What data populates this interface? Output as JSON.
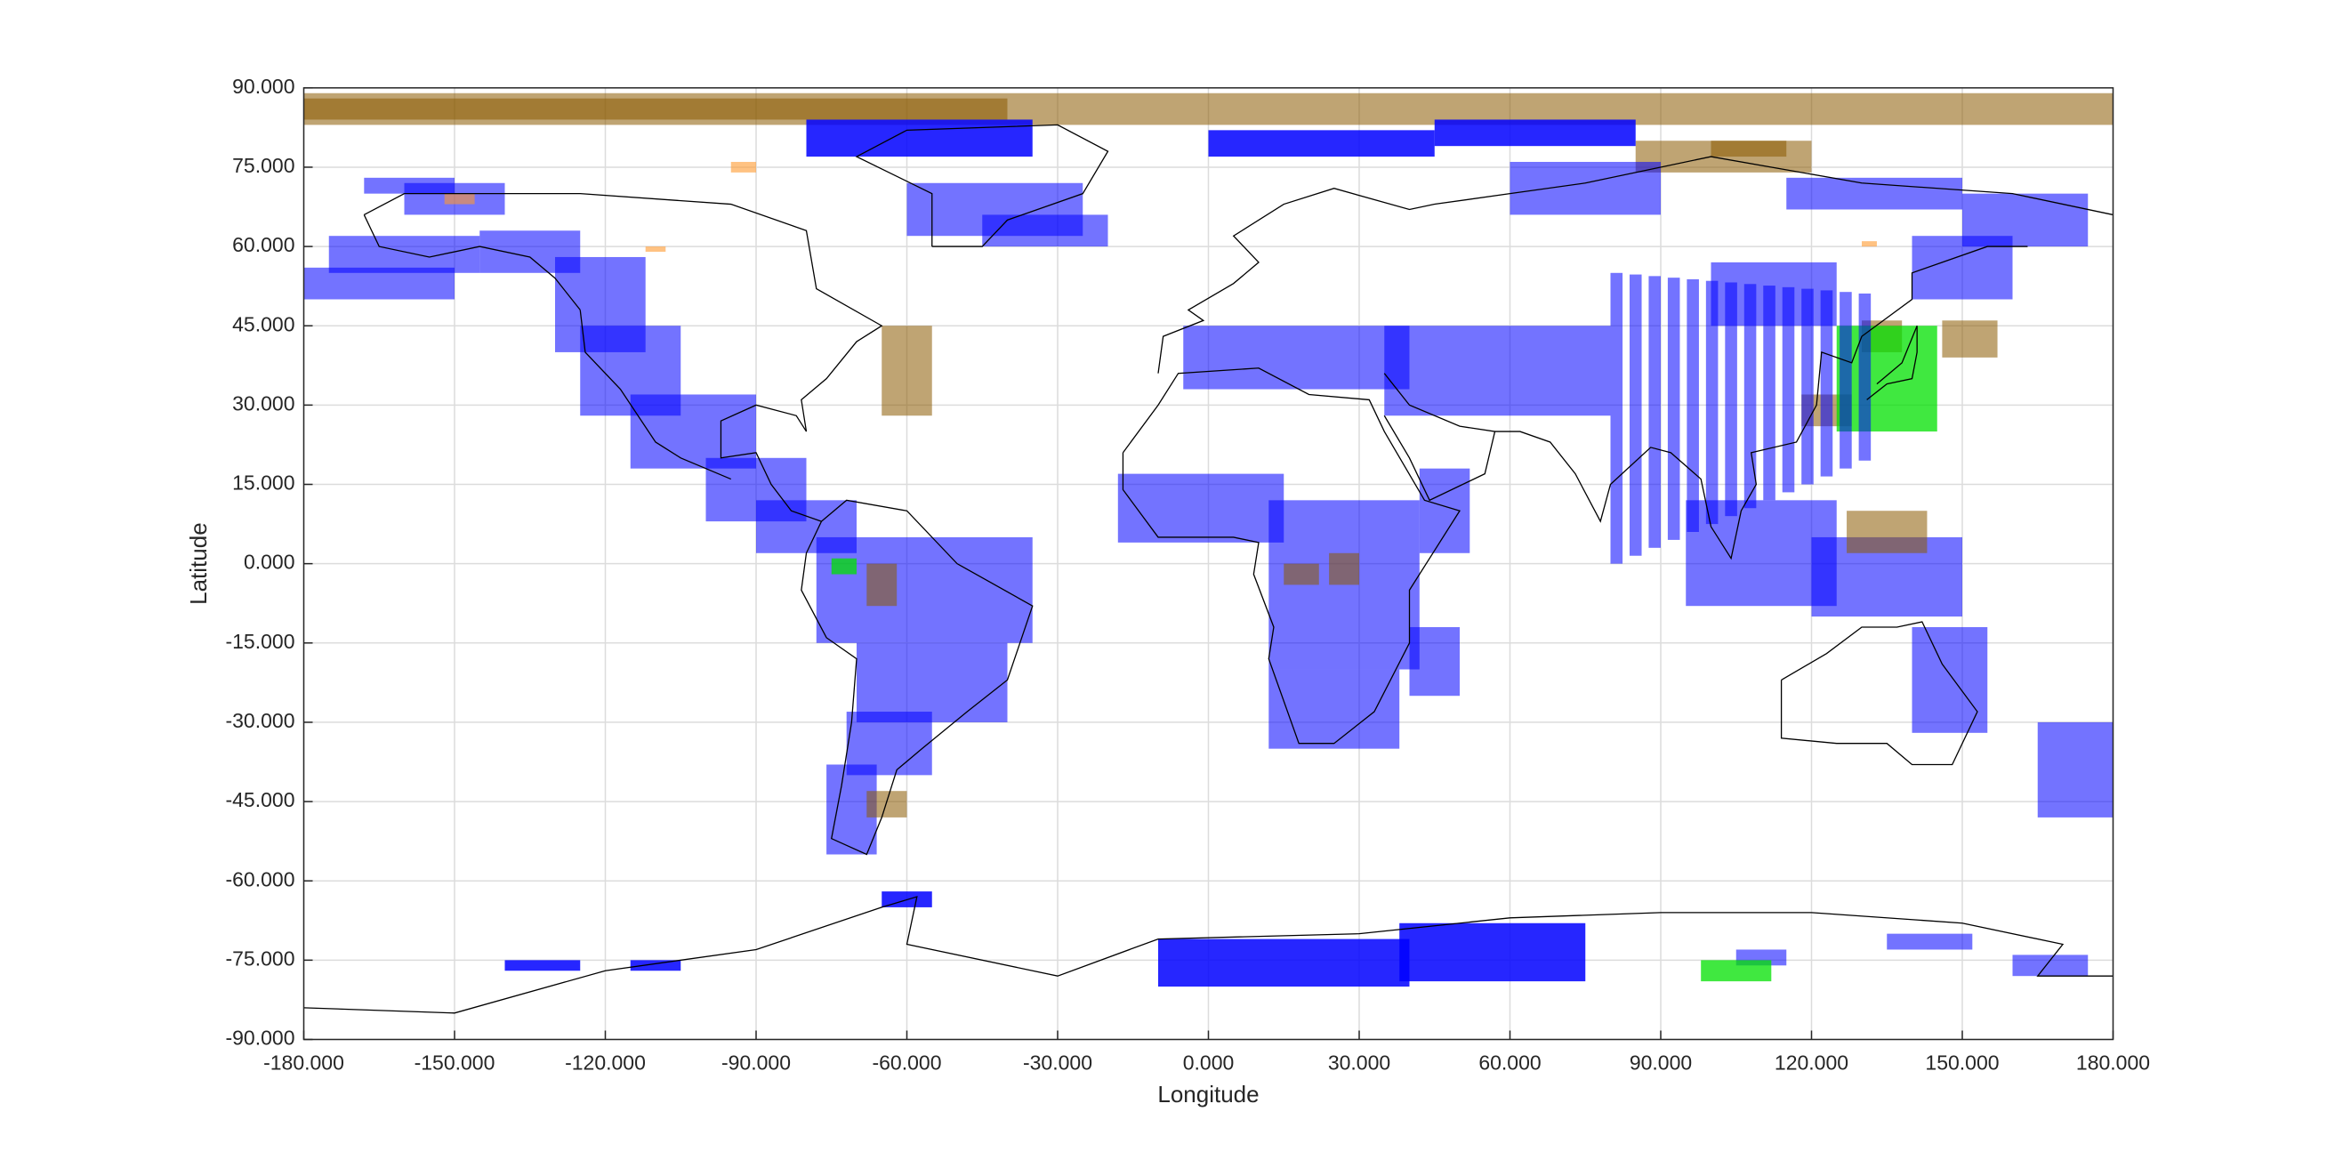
{
  "chart_data": {
    "type": "map",
    "xlabel": "Longitude",
    "ylabel": "Latitude",
    "xlim": [
      -180,
      180
    ],
    "ylim": [
      -90,
      90
    ],
    "xticks": [
      {
        "value": -180,
        "label": "-180.000"
      },
      {
        "value": -150,
        "label": "-150.000"
      },
      {
        "value": -120,
        "label": "-120.000"
      },
      {
        "value": -90,
        "label": "-90.000"
      },
      {
        "value": -60,
        "label": "-60.000"
      },
      {
        "value": -30,
        "label": "-30.000"
      },
      {
        "value": 0,
        "label": "0.000"
      },
      {
        "value": 30,
        "label": "30.000"
      },
      {
        "value": 60,
        "label": "60.000"
      },
      {
        "value": 90,
        "label": "90.000"
      },
      {
        "value": 120,
        "label": "120.000"
      },
      {
        "value": 150,
        "label": "150.000"
      },
      {
        "value": 180,
        "label": "180.000"
      }
    ],
    "yticks": [
      {
        "value": -90,
        "label": "-90.000"
      },
      {
        "value": -75,
        "label": "-75.000"
      },
      {
        "value": -60,
        "label": "-60.000"
      },
      {
        "value": -45,
        "label": "-45.000"
      },
      {
        "value": -30,
        "label": "-30.000"
      },
      {
        "value": -15,
        "label": "-15.000"
      },
      {
        "value": 0,
        "label": "0.000"
      },
      {
        "value": 15,
        "label": "15.000"
      },
      {
        "value": 30,
        "label": "30.000"
      },
      {
        "value": 45,
        "label": "45.000"
      },
      {
        "value": 60,
        "label": "60.000"
      },
      {
        "value": 75,
        "label": "75.000"
      },
      {
        "value": 90,
        "label": "90.000"
      }
    ],
    "grid": true
  }
}
